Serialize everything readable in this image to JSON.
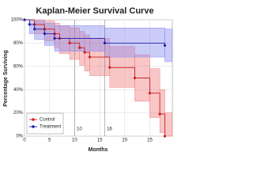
{
  "chart_data": {
    "type": "survival",
    "title": "Kaplan-Meier Survival Curve",
    "x_label": "Months",
    "y_label": "Percentage Surviving",
    "xlim": [
      0,
      29.5
    ],
    "ylim": [
      0,
      100
    ],
    "xticks": [
      0,
      5,
      10,
      15,
      20,
      25
    ],
    "yticks": [
      {
        "value": 0,
        "label": "0%"
      },
      {
        "value": 20,
        "label": "20%"
      },
      {
        "value": 40,
        "label": "40%"
      },
      {
        "value": 60,
        "label": "60%"
      },
      {
        "value": 80,
        "label": "80%"
      },
      {
        "value": 100,
        "label": "100%"
      }
    ],
    "grid": true,
    "vlines": [
      10,
      16
    ],
    "legend": "lower-left",
    "series": [
      {
        "name": "Control",
        "color": "#cc1f1f",
        "band_color": "#f08080",
        "x": [
          0,
          2,
          4,
          6,
          7,
          9,
          11,
          12,
          13,
          17,
          22,
          25,
          27,
          28
        ],
        "values": [
          100,
          96,
          92,
          88,
          84,
          80,
          76,
          72,
          68,
          59,
          50,
          37,
          19,
          0
        ],
        "lower": [
          100,
          88,
          82,
          76,
          71,
          66,
          61,
          56,
          52,
          42,
          30,
          16,
          3,
          0
        ],
        "upper": [
          100,
          100,
          99,
          97,
          95,
          93,
          90,
          87,
          84,
          77,
          70,
          58,
          40,
          20
        ]
      },
      {
        "name": "Treatment",
        "color": "#1f1fa8",
        "band_color": "#8c8cf0",
        "x": [
          0,
          1,
          2,
          4,
          6,
          16,
          28
        ],
        "values": [
          100,
          96,
          92,
          88,
          84,
          80,
          78
        ],
        "lower": [
          100,
          88,
          83,
          78,
          73,
          68,
          64
        ],
        "upper": [
          100,
          100,
          99,
          97,
          95,
          93,
          92
        ]
      }
    ]
  }
}
